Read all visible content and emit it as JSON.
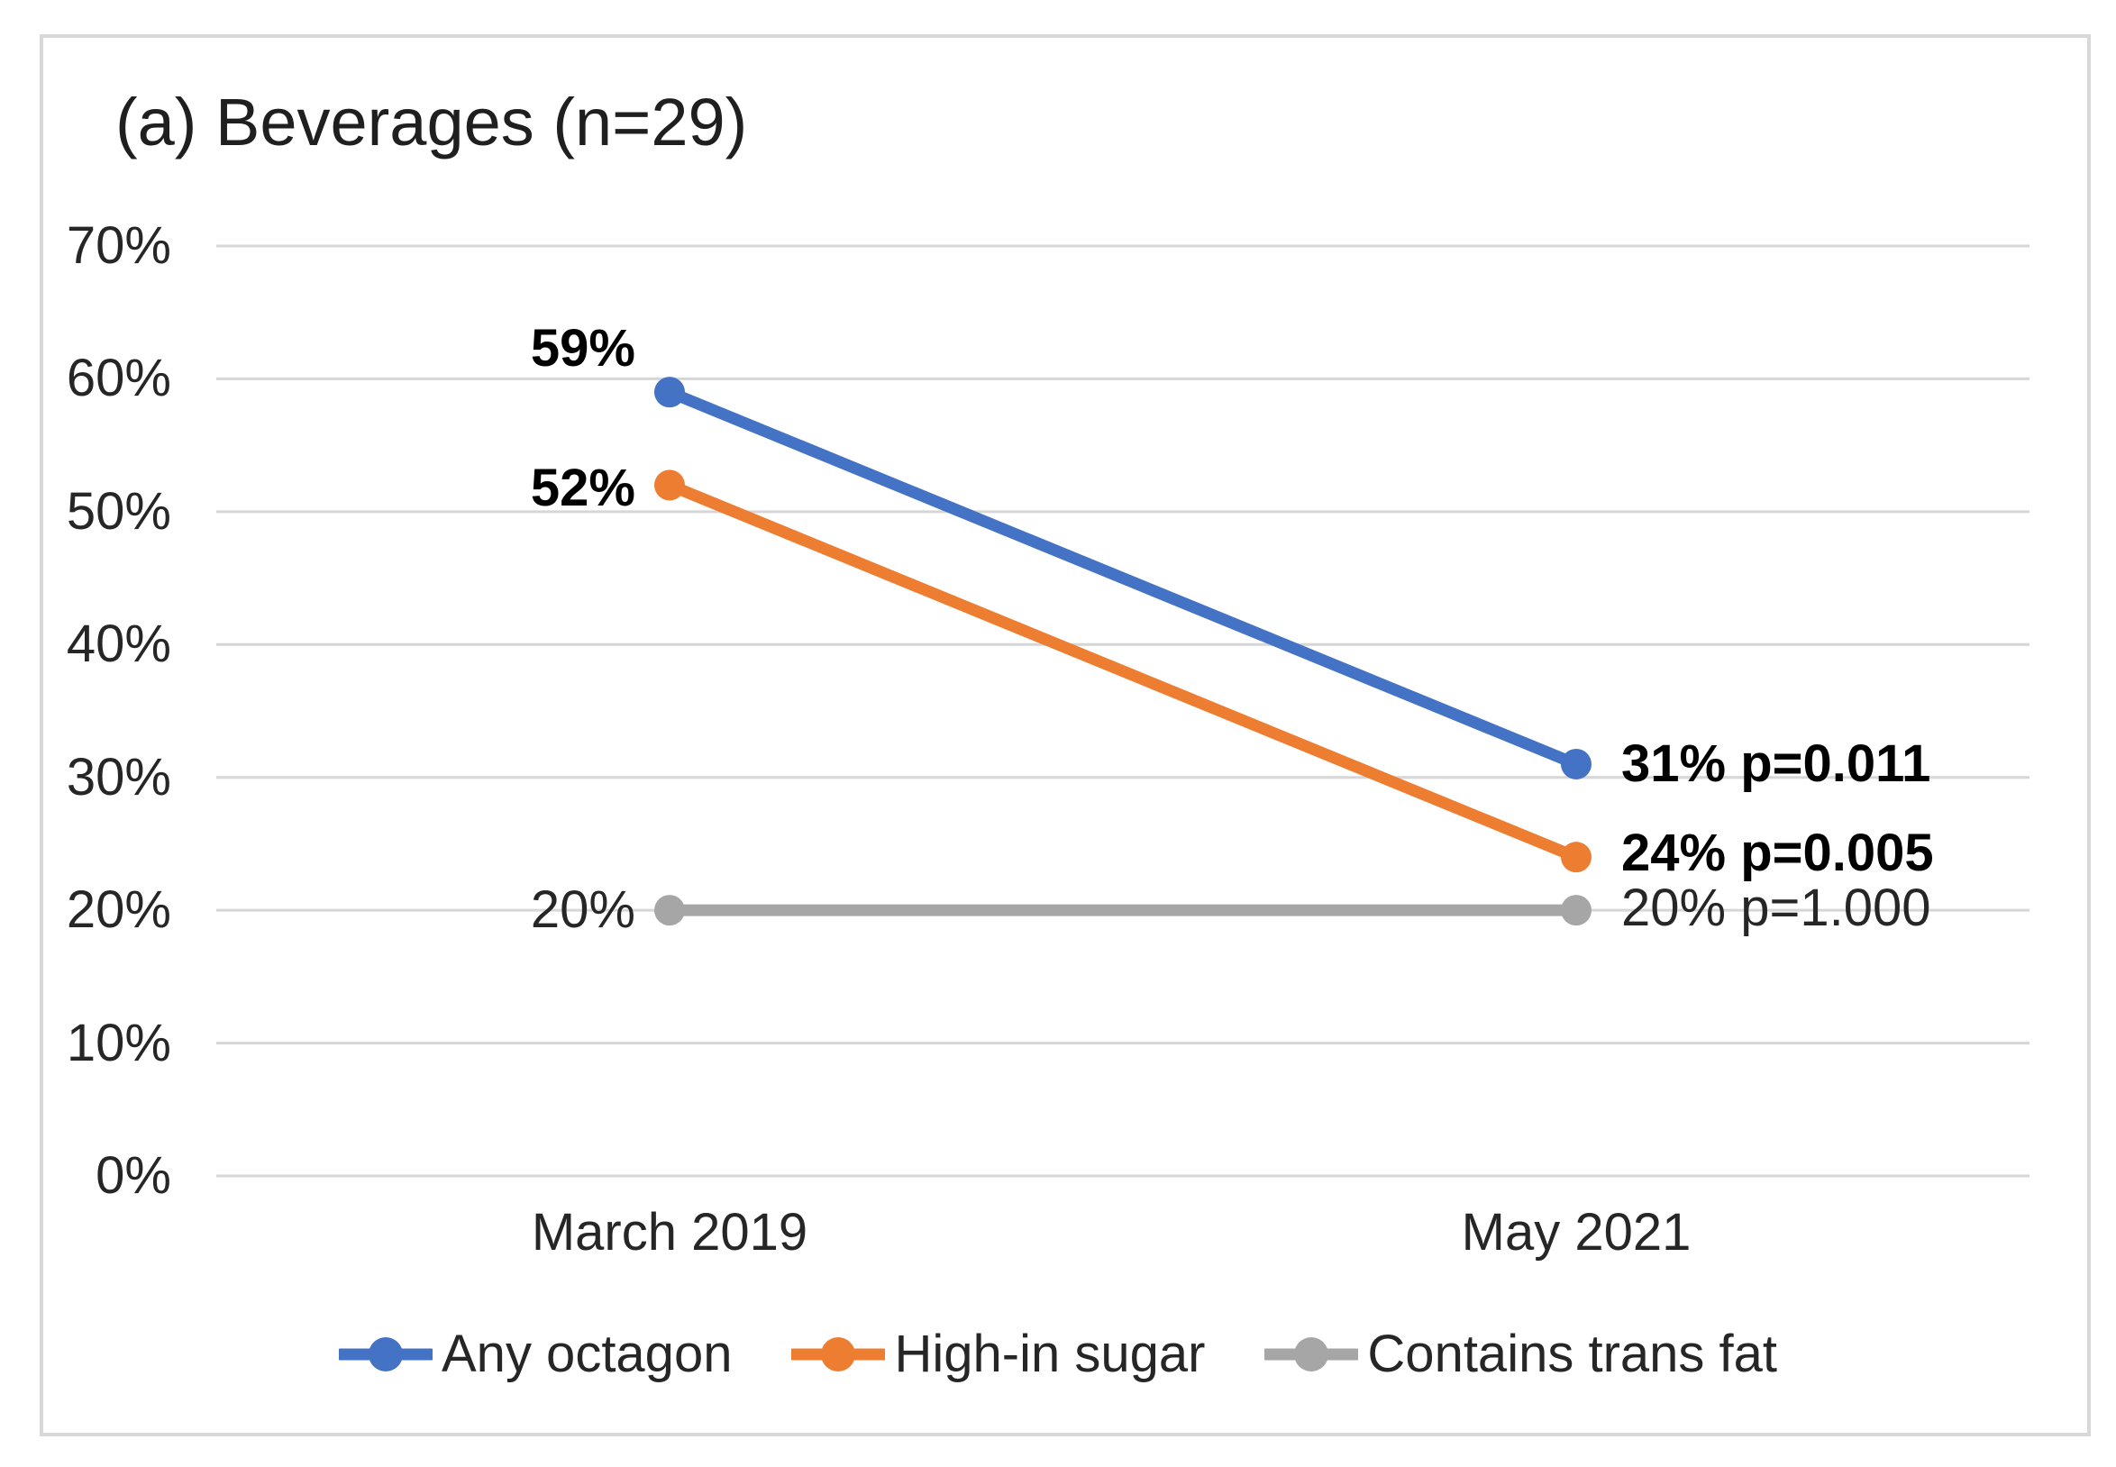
{
  "page": {
    "background": "#ffffff",
    "frame_border_color": "#d8d8d8"
  },
  "chart_data": {
    "type": "line",
    "title": "(a) Beverages (n=29)",
    "categories": [
      "March 2019",
      "May 2021"
    ],
    "y_axis": {
      "min": 0,
      "max": 70,
      "tick_step": 10,
      "tick_labels": [
        "70%",
        "60%",
        "50%",
        "40%",
        "30%",
        "20%",
        "10%",
        "0%"
      ],
      "grid": true
    },
    "grid_color": "#d6d6d6",
    "legend_position": "bottom",
    "series": [
      {
        "name": "Any octagon",
        "color": "#4472C4",
        "values": [
          59,
          31
        ],
        "start_label": "59%",
        "end_label": "31% p=0.011",
        "p_value": "p=0.011",
        "bold_labels": true
      },
      {
        "name": "High-in sugar",
        "color": "#ED7D31",
        "values": [
          52,
          24
        ],
        "start_label": "52%",
        "end_label": "24% p=0.005",
        "p_value": "p=0.005",
        "bold_labels": true
      },
      {
        "name": "Contains trans fat",
        "color": "#A6A6A6",
        "values": [
          20,
          20
        ],
        "start_label": "20%",
        "end_label": "20% p=1.000",
        "p_value": "p=1.000",
        "bold_labels": false
      }
    ]
  }
}
